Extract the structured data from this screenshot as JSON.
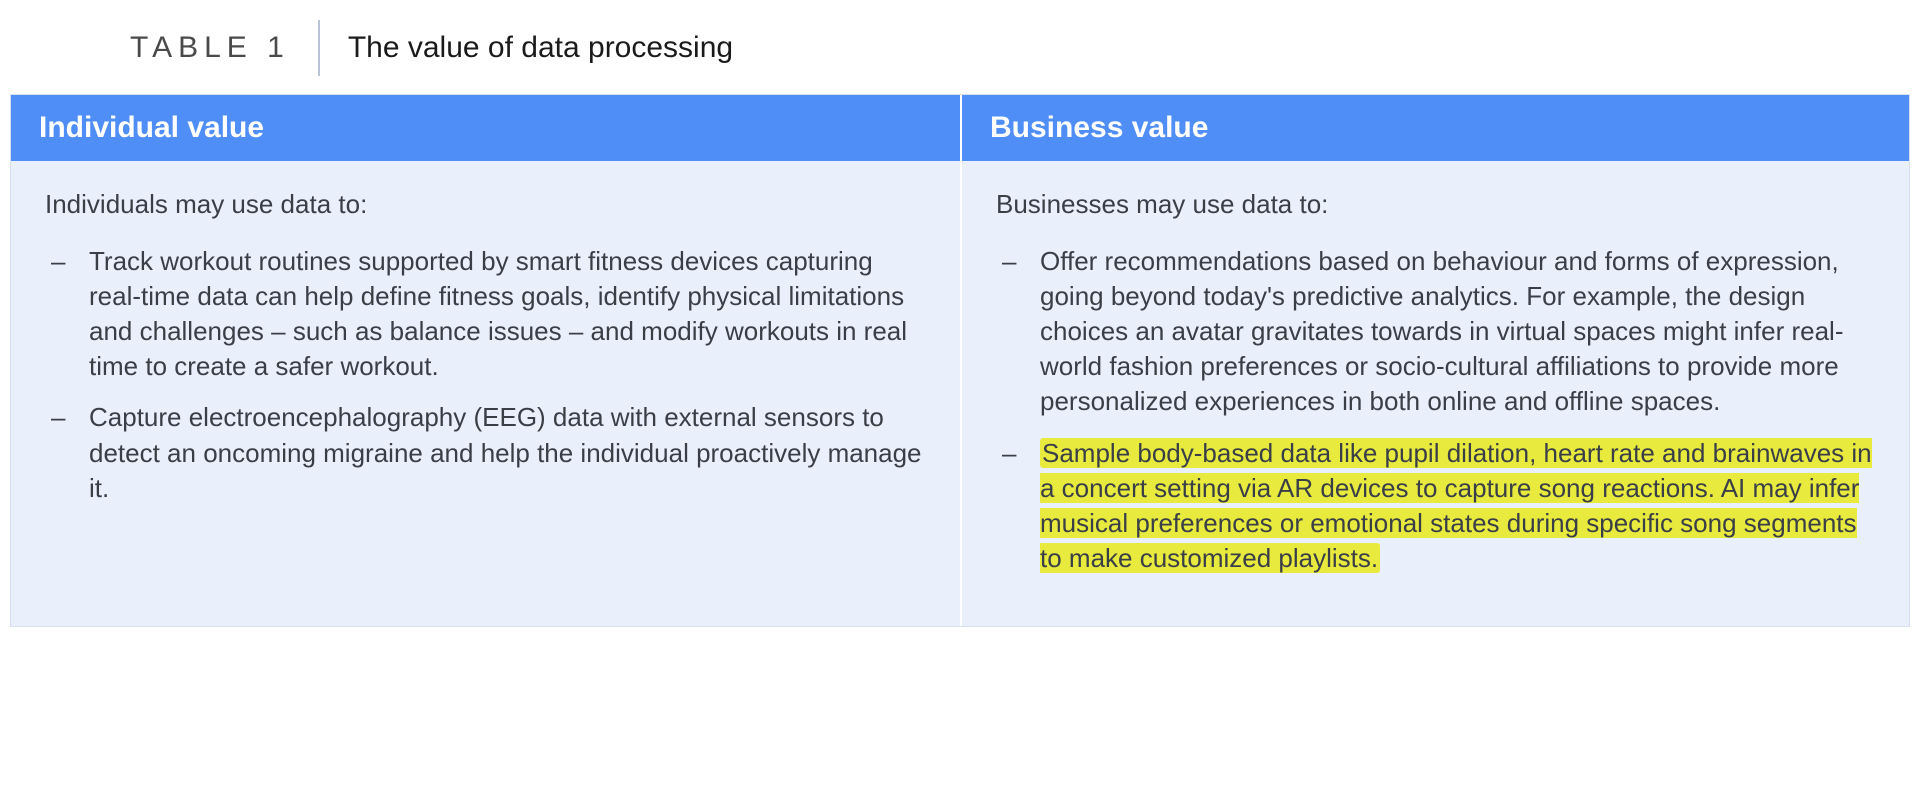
{
  "caption": {
    "label": "TABLE 1",
    "title": "The value of data processing"
  },
  "table": {
    "columns": [
      {
        "header": "Individual value",
        "intro": "Individuals may use data to:",
        "items": [
          {
            "text": "Track workout routines supported by smart fitness devices capturing real-time data can help define fitness goals, identify physical limitations and challenges – such as balance issues – and modify workouts in real time to create a safer workout.",
            "highlighted": false
          },
          {
            "text": "Capture electroencephalography (EEG) data with external sensors to detect an oncoming migraine and help the individual proactively manage it.",
            "highlighted": false
          }
        ]
      },
      {
        "header": "Business value",
        "intro": "Businesses may use data to:",
        "items": [
          {
            "text": "Offer recommendations based on behaviour and forms of expression, going beyond today's predictive analytics. For example, the design choices an avatar gravitates towards in virtual spaces might infer real-world fashion preferences or socio-cultural affiliations to provide more personalized experiences in both online and offline spaces.",
            "highlighted": false
          },
          {
            "text": "Sample body-based data like pupil dilation, heart rate and brainwaves in a concert setting via AR devices to capture song reactions. AI may infer musical preferences or emotional states during specific song segments to make customized playlists.",
            "highlighted": true
          }
        ]
      }
    ],
    "colors": {
      "header_bg": "#4f8ef7",
      "header_text": "#ffffff",
      "body_bg": "#eaf0fb",
      "body_text": "#3a3f47",
      "highlight_bg": "#e8ea3e",
      "border": "#d6e0f0"
    }
  }
}
